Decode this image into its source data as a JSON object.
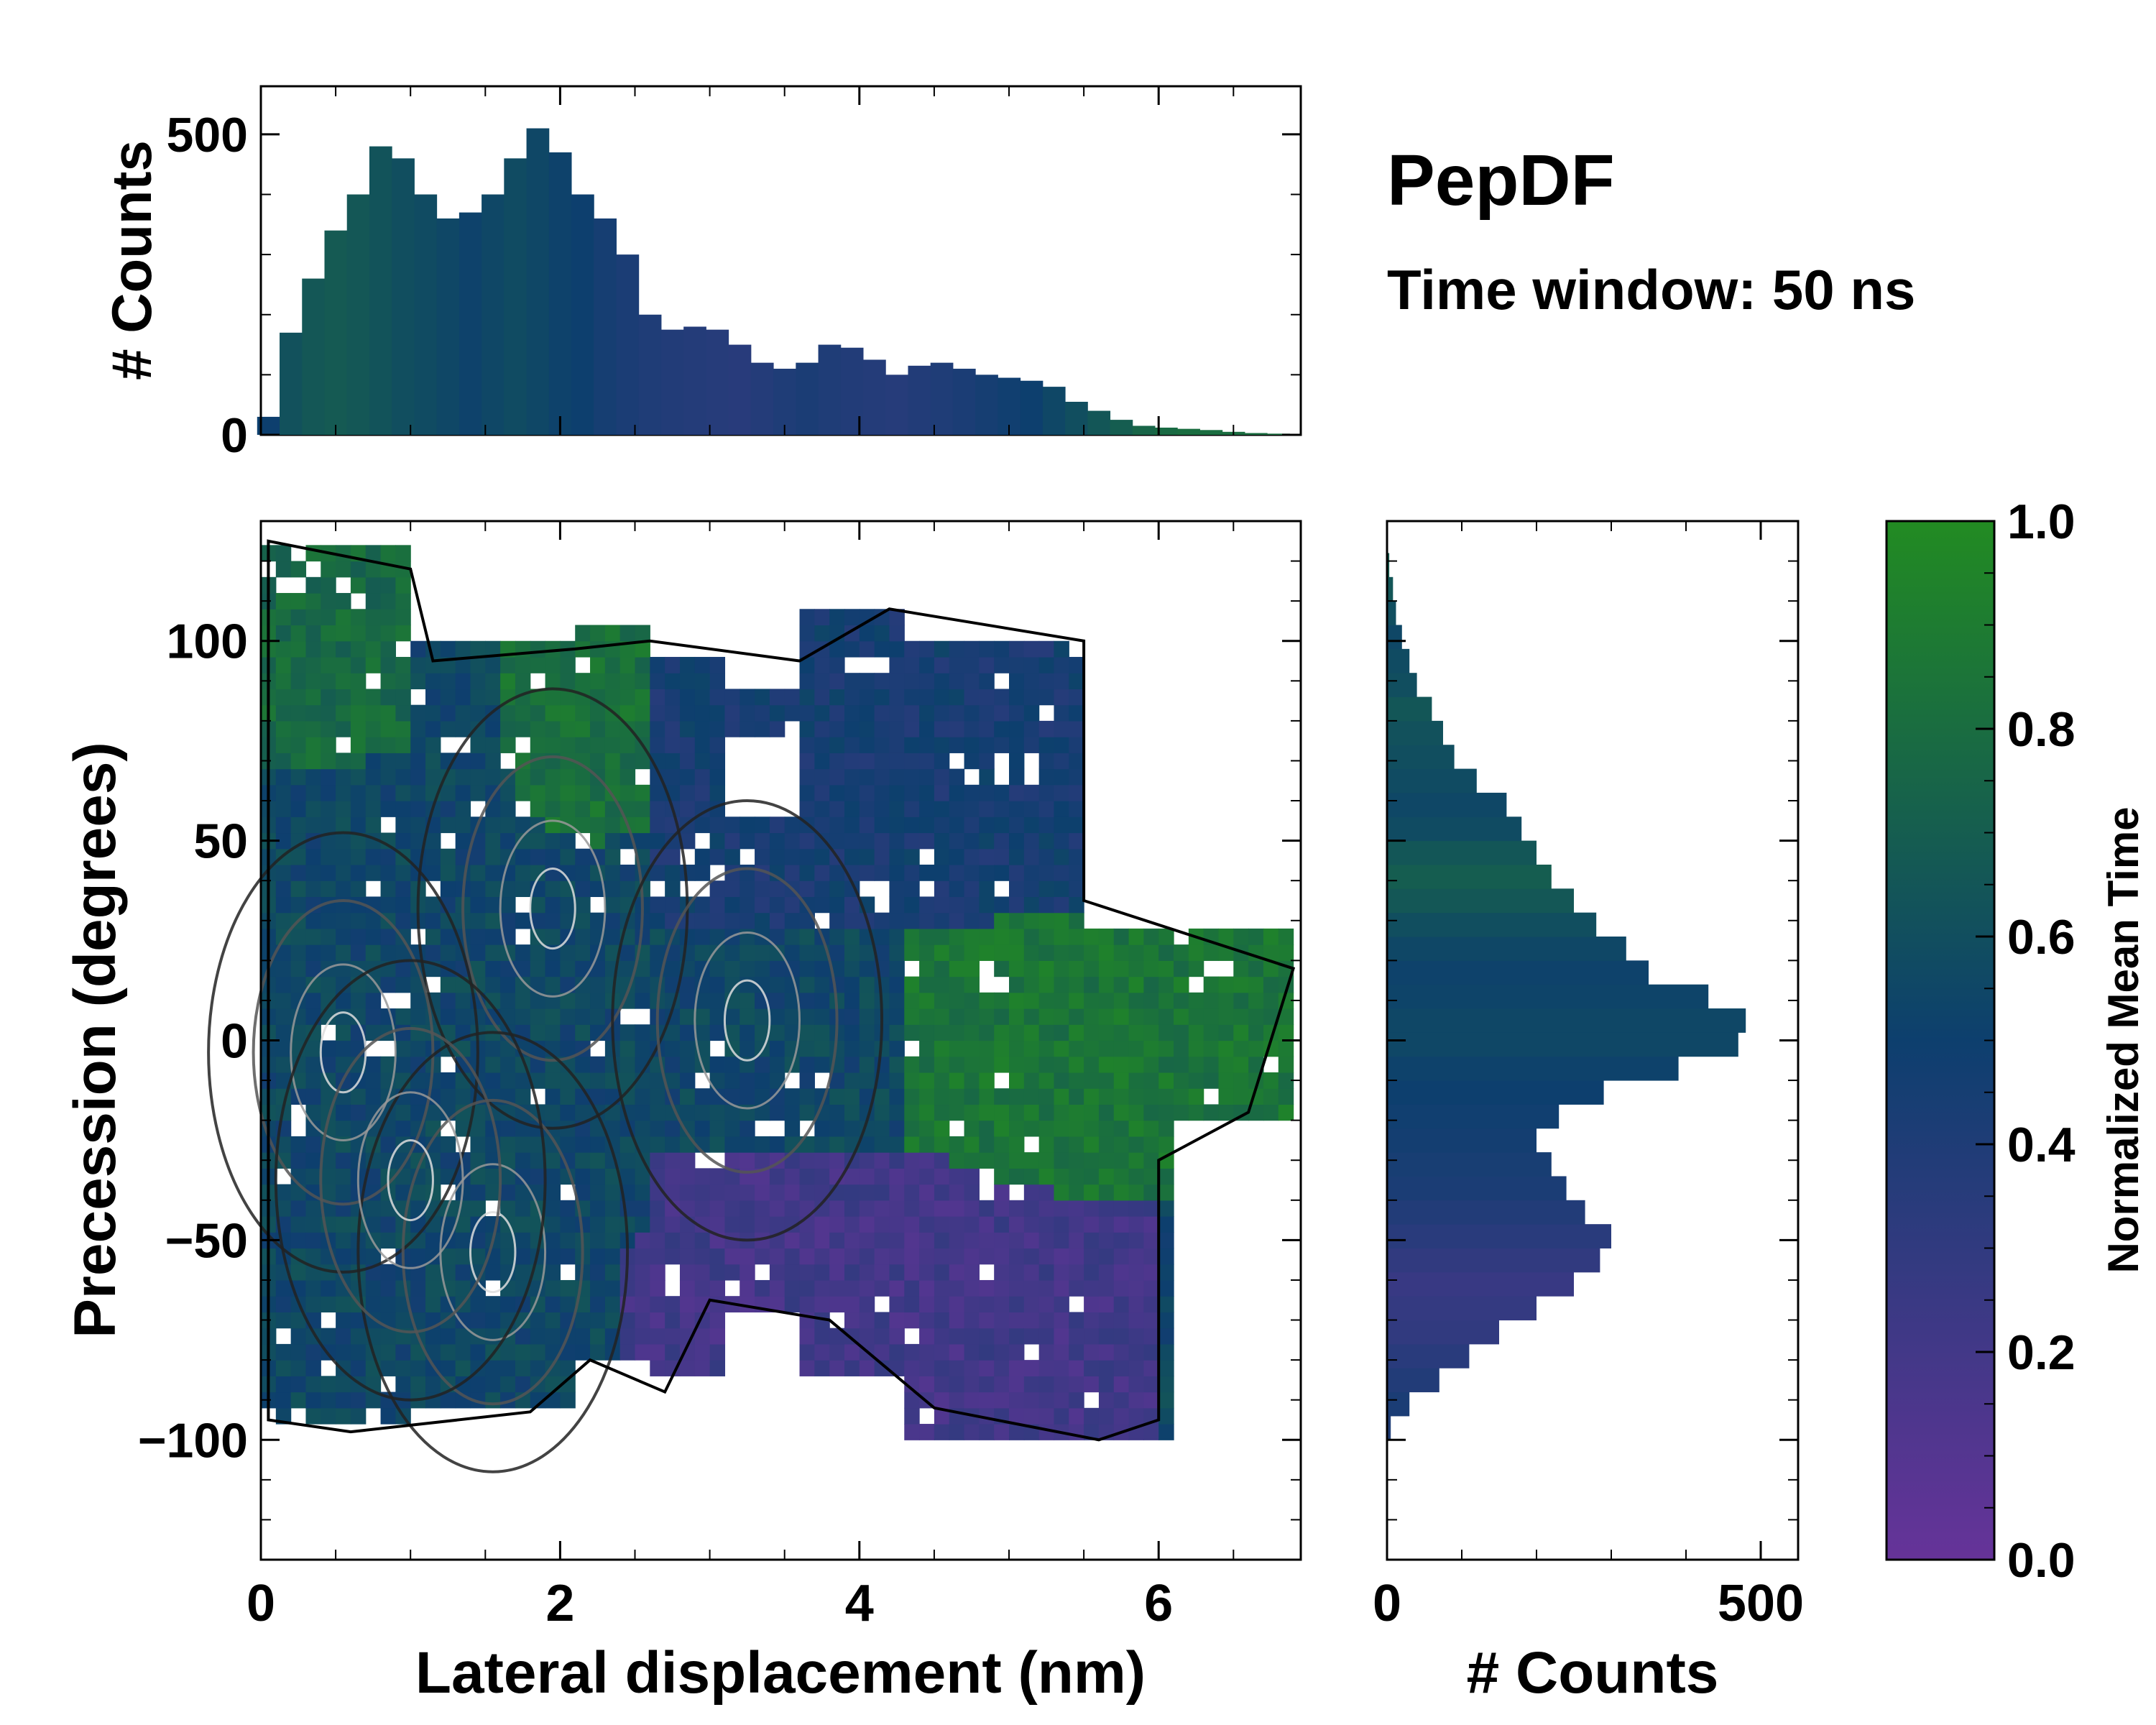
{
  "title": "PepDF",
  "subtitle": "Time window: 50 ns",
  "colors": {
    "low": "#663399",
    "mid": "#0d3f6e",
    "high": "#228b22",
    "contour_dark": "#111111",
    "contour_light": "#cccccc"
  },
  "chart_data": [
    {
      "name": "top-histogram",
      "type": "bar",
      "ylabel": "# Counts",
      "xlim": [
        0,
        6.95
      ],
      "ylim": [
        0,
        580
      ],
      "yticks": [
        0,
        500
      ],
      "ytick_labels": [
        "0",
        "500"
      ],
      "x": [
        0.05,
        0.2,
        0.35,
        0.5,
        0.65,
        0.8,
        0.95,
        1.1,
        1.25,
        1.4,
        1.55,
        1.7,
        1.85,
        2.0,
        2.15,
        2.3,
        2.45,
        2.6,
        2.75,
        2.9,
        3.05,
        3.2,
        3.35,
        3.5,
        3.65,
        3.8,
        3.95,
        4.1,
        4.25,
        4.4,
        4.55,
        4.7,
        4.85,
        5.0,
        5.15,
        5.3,
        5.45,
        5.6,
        5.75,
        5.9,
        6.05,
        6.2,
        6.35,
        6.5,
        6.65,
        6.8
      ],
      "values": [
        30,
        170,
        260,
        340,
        400,
        480,
        460,
        400,
        360,
        370,
        400,
        460,
        510,
        470,
        400,
        360,
        300,
        200,
        175,
        180,
        175,
        150,
        120,
        110,
        120,
        150,
        145,
        125,
        100,
        115,
        120,
        110,
        100,
        95,
        90,
        80,
        55,
        40,
        25,
        15,
        12,
        10,
        8,
        5,
        3,
        2
      ],
      "mean_time": [
        0.5,
        0.62,
        0.66,
        0.68,
        0.66,
        0.63,
        0.6,
        0.58,
        0.55,
        0.52,
        0.55,
        0.58,
        0.55,
        0.52,
        0.5,
        0.45,
        0.42,
        0.4,
        0.38,
        0.37,
        0.36,
        0.35,
        0.37,
        0.4,
        0.42,
        0.4,
        0.38,
        0.37,
        0.36,
        0.38,
        0.4,
        0.42,
        0.45,
        0.48,
        0.5,
        0.55,
        0.6,
        0.65,
        0.7,
        0.75,
        0.78,
        0.8,
        0.8,
        0.8,
        0.8,
        0.8
      ]
    },
    {
      "name": "main-2d-histogram",
      "type": "heatmap",
      "xlabel": "Lateral displacement (nm)",
      "ylabel": "Precession (degrees)",
      "xlim": [
        0,
        6.95
      ],
      "ylim": [
        -130,
        130
      ],
      "xticks": [
        0,
        2,
        4,
        6
      ],
      "xtick_labels": [
        "0",
        "2",
        "4",
        "6"
      ],
      "yticks": [
        -100,
        -50,
        0,
        50,
        100
      ],
      "ytick_labels": [
        "−100",
        "−50",
        "0",
        "50",
        "100"
      ],
      "regions": [
        {
          "label": "upper-left green",
          "x": [
            0.0,
            1.0
          ],
          "y": [
            70,
            125
          ],
          "mean_time": 0.78
        },
        {
          "label": "center-left mixed",
          "x": [
            0.0,
            2.6
          ],
          "y": [
            -90,
            70
          ],
          "mean_time": 0.55
        },
        {
          "label": "upper-center green",
          "x": [
            1.6,
            2.6
          ],
          "y": [
            50,
            105
          ],
          "mean_time": 0.82
        },
        {
          "label": "upper-right blue",
          "x": [
            2.6,
            5.5
          ],
          "y": [
            30,
            110
          ],
          "mean_time": 0.45
        },
        {
          "label": "right green arm",
          "x": [
            4.3,
            6.9
          ],
          "y": [
            -40,
            30
          ],
          "mean_time": 0.85
        },
        {
          "label": "lower-right purple",
          "x": [
            2.4,
            6.0
          ],
          "y": [
            -100,
            -30
          ],
          "mean_time": 0.2
        }
      ],
      "hotspots": [
        {
          "x": 1.95,
          "y": 33
        },
        {
          "x": 0.55,
          "y": -3
        },
        {
          "x": 1.55,
          "y": -53
        },
        {
          "x": 1.0,
          "y": -35
        },
        {
          "x": 3.25,
          "y": 5
        }
      ]
    },
    {
      "name": "right-histogram",
      "type": "bar",
      "orientation": "horizontal",
      "xlabel": "# Counts",
      "xlim": [
        0,
        550
      ],
      "ylim": [
        -130,
        130
      ],
      "xticks": [
        0,
        500
      ],
      "xtick_labels": [
        "0",
        "500"
      ],
      "y": [
        -97,
        -91,
        -85,
        -79,
        -73,
        -67,
        -61,
        -55,
        -49,
        -43,
        -37,
        -31,
        -25,
        -19,
        -13,
        -7,
        -1,
        5,
        11,
        17,
        23,
        29,
        35,
        41,
        47,
        53,
        59,
        65,
        71,
        77,
        83,
        89,
        95,
        101,
        107,
        113,
        119,
        125
      ],
      "values": [
        5,
        30,
        70,
        110,
        150,
        200,
        250,
        285,
        300,
        265,
        240,
        220,
        200,
        230,
        290,
        390,
        470,
        480,
        430,
        350,
        320,
        280,
        250,
        220,
        200,
        180,
        160,
        120,
        90,
        75,
        60,
        40,
        30,
        20,
        12,
        8,
        3,
        1
      ],
      "mean_time": [
        0.4,
        0.42,
        0.38,
        0.34,
        0.3,
        0.28,
        0.26,
        0.3,
        0.34,
        0.38,
        0.42,
        0.44,
        0.46,
        0.48,
        0.5,
        0.52,
        0.55,
        0.55,
        0.53,
        0.52,
        0.55,
        0.6,
        0.66,
        0.7,
        0.65,
        0.58,
        0.55,
        0.58,
        0.6,
        0.62,
        0.65,
        0.6,
        0.58,
        0.55,
        0.6,
        0.65,
        0.7,
        0.75
      ]
    },
    {
      "name": "colorbar",
      "type": "colorbar",
      "label": "Normalized Mean Time",
      "range": [
        0,
        1
      ],
      "ticks": [
        0,
        0.2,
        0.4,
        0.6,
        0.8,
        1
      ],
      "tick_labels": [
        "0.0",
        "0.2",
        "0.4",
        "0.6",
        "0.8",
        "1.0"
      ]
    }
  ]
}
